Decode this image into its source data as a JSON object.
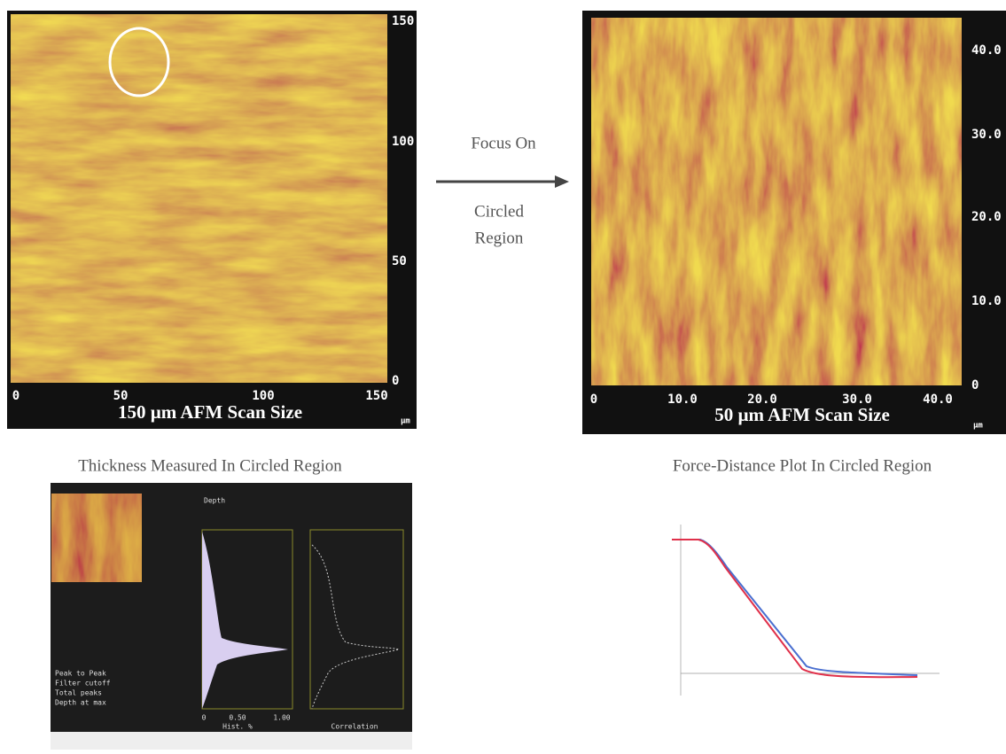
{
  "left_scan": {
    "yticks": [
      "150",
      "100",
      "50",
      "0"
    ],
    "xticks": [
      "0",
      "50",
      "100",
      "150"
    ],
    "unit": "µm",
    "caption": "150 µm AFM Scan Size"
  },
  "arrow": {
    "top": "Focus On",
    "bottom": [
      "Circled",
      "Region"
    ]
  },
  "right_scan": {
    "yticks": [
      "40.0",
      "30.0",
      "20.0",
      "10.0",
      "0"
    ],
    "xticks": [
      "0",
      "10.0",
      "20.0",
      "30.0",
      "40.0"
    ],
    "unit": "µm",
    "caption": "50 µm AFM Scan Size"
  },
  "captions": [
    "Thickness Measured In Circled Region",
    "Force-Distance Plot In Circled Region"
  ],
  "depth_panel": {
    "title": "Depth",
    "info": [
      "Peak to Peak",
      "Filter cutoff",
      "Total peaks",
      "Depth at max"
    ],
    "hist_label": "Hist. %",
    "corr_label": "Correlation",
    "xticks": [
      "0",
      "0.50",
      "1.00"
    ]
  }
}
